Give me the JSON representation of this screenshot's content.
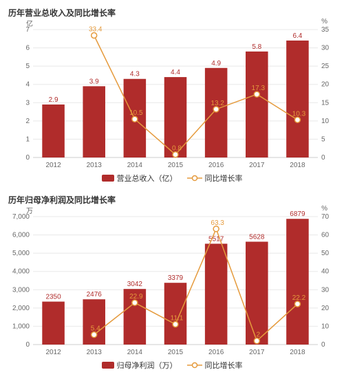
{
  "chart1": {
    "type": "bar+line",
    "title": "历年营业总收入及同比增长率",
    "x_categories": [
      "2012",
      "2013",
      "2014",
      "2015",
      "2016",
      "2017",
      "2018"
    ],
    "left_axis": {
      "unit": "亿",
      "min": 0,
      "max": 7,
      "ticks": [
        0,
        1,
        2,
        3,
        4,
        5,
        6,
        7
      ],
      "grid_color": "#e8e8e8"
    },
    "right_axis": {
      "unit": "%",
      "min": 0,
      "max": 35,
      "ticks": [
        0,
        5,
        10,
        15,
        20,
        25,
        30,
        35
      ]
    },
    "bars": {
      "values": [
        2.9,
        3.9,
        4.3,
        4.4,
        4.9,
        5.8,
        6.4
      ],
      "labels": [
        "2.9",
        "3.9",
        "4.3",
        "4.4",
        "4.9",
        "5.8",
        "6.4"
      ],
      "color": "#b02c2b",
      "label_color": "#b02c2b",
      "label_fontsize": 10,
      "width_ratio": 0.55
    },
    "line": {
      "values": [
        null,
        33.4,
        10.5,
        0.8,
        13.2,
        17.3,
        10.3
      ],
      "labels": [
        null,
        "33.4",
        "10.5",
        "0.8",
        "13.2",
        "17.3",
        "10.3"
      ],
      "color": "#e59a3c",
      "marker": "hollow-circle",
      "marker_size": 4,
      "line_width": 1.5,
      "label_color": "#e59a3c",
      "label_fontsize": 10
    },
    "legend": {
      "bar_label": "营业总收入（亿）",
      "line_label": "同比增长率"
    },
    "axis_font_color": "#666666",
    "axis_font_size": 10,
    "background": "#ffffff"
  },
  "chart2": {
    "type": "bar+line",
    "title": "历年归母净利润及同比增长率",
    "x_categories": [
      "2012",
      "2013",
      "2014",
      "2015",
      "2016",
      "2017",
      "2018"
    ],
    "left_axis": {
      "unit": "万",
      "min": 0,
      "max": 7000,
      "ticks": [
        0,
        1000,
        2000,
        3000,
        4000,
        5000,
        6000,
        7000
      ],
      "tick_labels": [
        "0",
        "1,000",
        "2,000",
        "3,000",
        "4,000",
        "5,000",
        "6,000",
        "7,000"
      ],
      "grid_color": "#e8e8e8"
    },
    "right_axis": {
      "unit": "%",
      "min": 0,
      "max": 70,
      "ticks": [
        0,
        10,
        20,
        30,
        40,
        50,
        60,
        70
      ]
    },
    "bars": {
      "values": [
        2350,
        2476,
        3042,
        3379,
        5517,
        5628,
        6879
      ],
      "labels": [
        "2350",
        "2476",
        "3042",
        "3379",
        "5517",
        "5628",
        "6879"
      ],
      "color": "#b02c2b",
      "label_color": "#b02c2b",
      "label_fontsize": 10,
      "width_ratio": 0.55
    },
    "line": {
      "values": [
        null,
        5.4,
        22.9,
        11.1,
        63.3,
        2.0,
        22.2
      ],
      "labels": [
        null,
        "5.4",
        "22.9",
        "11.1",
        "63.3",
        "2",
        "22.2"
      ],
      "color": "#e59a3c",
      "marker": "hollow-circle",
      "marker_size": 4,
      "line_width": 1.5,
      "label_color": "#e59a3c",
      "label_fontsize": 10
    },
    "legend": {
      "bar_label": "归母净利润（万）",
      "line_label": "同比增长率"
    },
    "axis_font_color": "#666666",
    "axis_font_size": 10,
    "background": "#ffffff"
  }
}
